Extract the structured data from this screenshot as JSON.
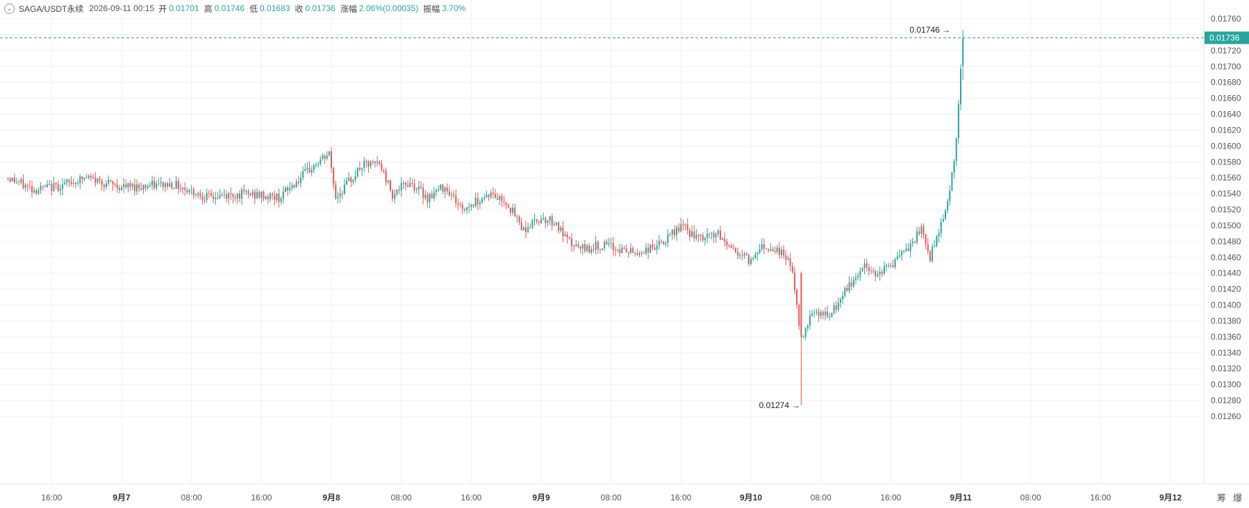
{
  "header": {
    "symbol": "SAGA/USDT永续",
    "datetime": "2026-09-11 00:15",
    "open_label": "开",
    "open": "0.01701",
    "high_label": "高",
    "high": "0.01746",
    "low_label": "低",
    "low": "0.01683",
    "close_label": "收",
    "close": "0.01736",
    "change_label": "涨幅",
    "change": "2.06%(0.00035)",
    "amplitude_label": "振幅",
    "amplitude": "3.70%"
  },
  "colors": {
    "up": "#26a69a",
    "down": "#ef5350",
    "grid": "#f0f0f0",
    "last_price": "#26a69a"
  },
  "widgets": {
    "left": "筹",
    "right": "爆"
  },
  "chart_data": {
    "type": "candlestick",
    "title": "",
    "interval": "15m",
    "ylim": [
      0.0125,
      0.0177
    ],
    "y_ticks": [
      "0.01760",
      "0.01740",
      "0.01720",
      "0.01700",
      "0.01680",
      "0.01660",
      "0.01640",
      "0.01620",
      "0.01600",
      "0.01580",
      "0.01560",
      "0.01540",
      "0.01520",
      "0.01500",
      "0.01480",
      "0.01460",
      "0.01440",
      "0.01420",
      "0.01400",
      "0.01380",
      "0.01360",
      "0.01340",
      "0.01320",
      "0.01300",
      "0.01280",
      "0.01260"
    ],
    "x_ticks": [
      {
        "label": "16:00",
        "day": "2026-09-06",
        "hour": 16,
        "bold": false
      },
      {
        "label": "9月7",
        "day": "2026-09-07",
        "hour": 0,
        "bold": true
      },
      {
        "label": "08:00",
        "day": "2026-09-07",
        "hour": 8,
        "bold": false
      },
      {
        "label": "16:00",
        "day": "2026-09-07",
        "hour": 16,
        "bold": false
      },
      {
        "label": "9月8",
        "day": "2026-09-08",
        "hour": 0,
        "bold": true
      },
      {
        "label": "08:00",
        "day": "2026-09-08",
        "hour": 8,
        "bold": false
      },
      {
        "label": "16:00",
        "day": "2026-09-08",
        "hour": 16,
        "bold": false
      },
      {
        "label": "9月9",
        "day": "2026-09-09",
        "hour": 0,
        "bold": true
      },
      {
        "label": "08:00",
        "day": "2026-09-09",
        "hour": 8,
        "bold": false
      },
      {
        "label": "16:00",
        "day": "2026-09-09",
        "hour": 16,
        "bold": false
      },
      {
        "label": "9月10",
        "day": "2026-09-10",
        "hour": 0,
        "bold": true
      },
      {
        "label": "08:00",
        "day": "2026-09-10",
        "hour": 8,
        "bold": false
      },
      {
        "label": "16:00",
        "day": "2026-09-10",
        "hour": 16,
        "bold": false
      },
      {
        "label": "9月11",
        "day": "2026-09-11",
        "hour": 0,
        "bold": true
      },
      {
        "label": "08:00",
        "day": "2026-09-11",
        "hour": 8,
        "bold": false
      },
      {
        "label": "16:00",
        "day": "2026-09-11",
        "hour": 16,
        "bold": false
      },
      {
        "label": "9月12",
        "day": "2026-09-12",
        "hour": 0,
        "bold": true
      }
    ],
    "last_price": "0.01736",
    "max_label": "0.01746",
    "min_label": "0.01274",
    "close_path": [
      [
        "2026-09-06 11:00",
        0.0156
      ],
      [
        "2026-09-06 14:00",
        0.01545
      ],
      [
        "2026-09-06 17:00",
        0.0155
      ],
      [
        "2026-09-06 20:00",
        0.0156
      ],
      [
        "2026-09-07 00:00",
        0.01548
      ],
      [
        "2026-09-07 06:00",
        0.01552
      ],
      [
        "2026-09-07 10:00",
        0.01535
      ],
      [
        "2026-09-07 14:00",
        0.0154
      ],
      [
        "2026-09-07 18:00",
        0.01535
      ],
      [
        "2026-09-07 22:00",
        0.01575
      ],
      [
        "2026-09-07 23:45",
        0.0159
      ],
      [
        "2026-09-08 00:30",
        0.01535
      ],
      [
        "2026-09-08 02:00",
        0.01555
      ],
      [
        "2026-09-08 03:30",
        0.01575
      ],
      [
        "2026-09-08 05:30",
        0.01578
      ],
      [
        "2026-09-08 07:00",
        0.0154
      ],
      [
        "2026-09-08 09:00",
        0.01555
      ],
      [
        "2026-09-08 11:00",
        0.01535
      ],
      [
        "2026-09-08 13:00",
        0.0155
      ],
      [
        "2026-09-08 15:00",
        0.0152
      ],
      [
        "2026-09-08 18:00",
        0.0154
      ],
      [
        "2026-09-08 20:00",
        0.0153
      ],
      [
        "2026-09-08 22:00",
        0.01495
      ],
      [
        "2026-09-09 00:00",
        0.0151
      ],
      [
        "2026-09-09 01:30",
        0.01505
      ],
      [
        "2026-09-09 03:00",
        0.0148
      ],
      [
        "2026-09-09 04:30",
        0.0147
      ],
      [
        "2026-09-09 07:00",
        0.01475
      ],
      [
        "2026-09-09 09:00",
        0.0147
      ],
      [
        "2026-09-09 11:00",
        0.01465
      ],
      [
        "2026-09-09 14:00",
        0.01478
      ],
      [
        "2026-09-09 16:00",
        0.015
      ],
      [
        "2026-09-09 18:00",
        0.01482
      ],
      [
        "2026-09-09 20:00",
        0.0149
      ],
      [
        "2026-09-09 22:00",
        0.0147
      ],
      [
        "2026-09-10 00:00",
        0.01455
      ],
      [
        "2026-09-10 01:00",
        0.01475
      ],
      [
        "2026-09-10 03:00",
        0.0147
      ],
      [
        "2026-09-10 04:30",
        0.01455
      ],
      [
        "2026-09-10 05:15",
        0.014
      ],
      [
        "2026-09-10 05:45",
        0.01355
      ],
      [
        "2026-09-10 07:00",
        0.01395
      ],
      [
        "2026-09-10 09:00",
        0.01385
      ],
      [
        "2026-09-10 11:00",
        0.0142
      ],
      [
        "2026-09-10 13:00",
        0.0145
      ],
      [
        "2026-09-10 14:00",
        0.0144
      ],
      [
        "2026-09-10 16:00",
        0.0145
      ],
      [
        "2026-09-10 18:00",
        0.0147
      ],
      [
        "2026-09-10 19:30",
        0.01495
      ],
      [
        "2026-09-10 20:30",
        0.0146
      ],
      [
        "2026-09-10 21:30",
        0.01495
      ],
      [
        "2026-09-10 22:30",
        0.0153
      ],
      [
        "2026-09-10 23:15",
        0.0158
      ],
      [
        "2026-09-10 23:45",
        0.0165
      ],
      [
        "2026-09-11 00:15",
        0.01736
      ]
    ]
  }
}
